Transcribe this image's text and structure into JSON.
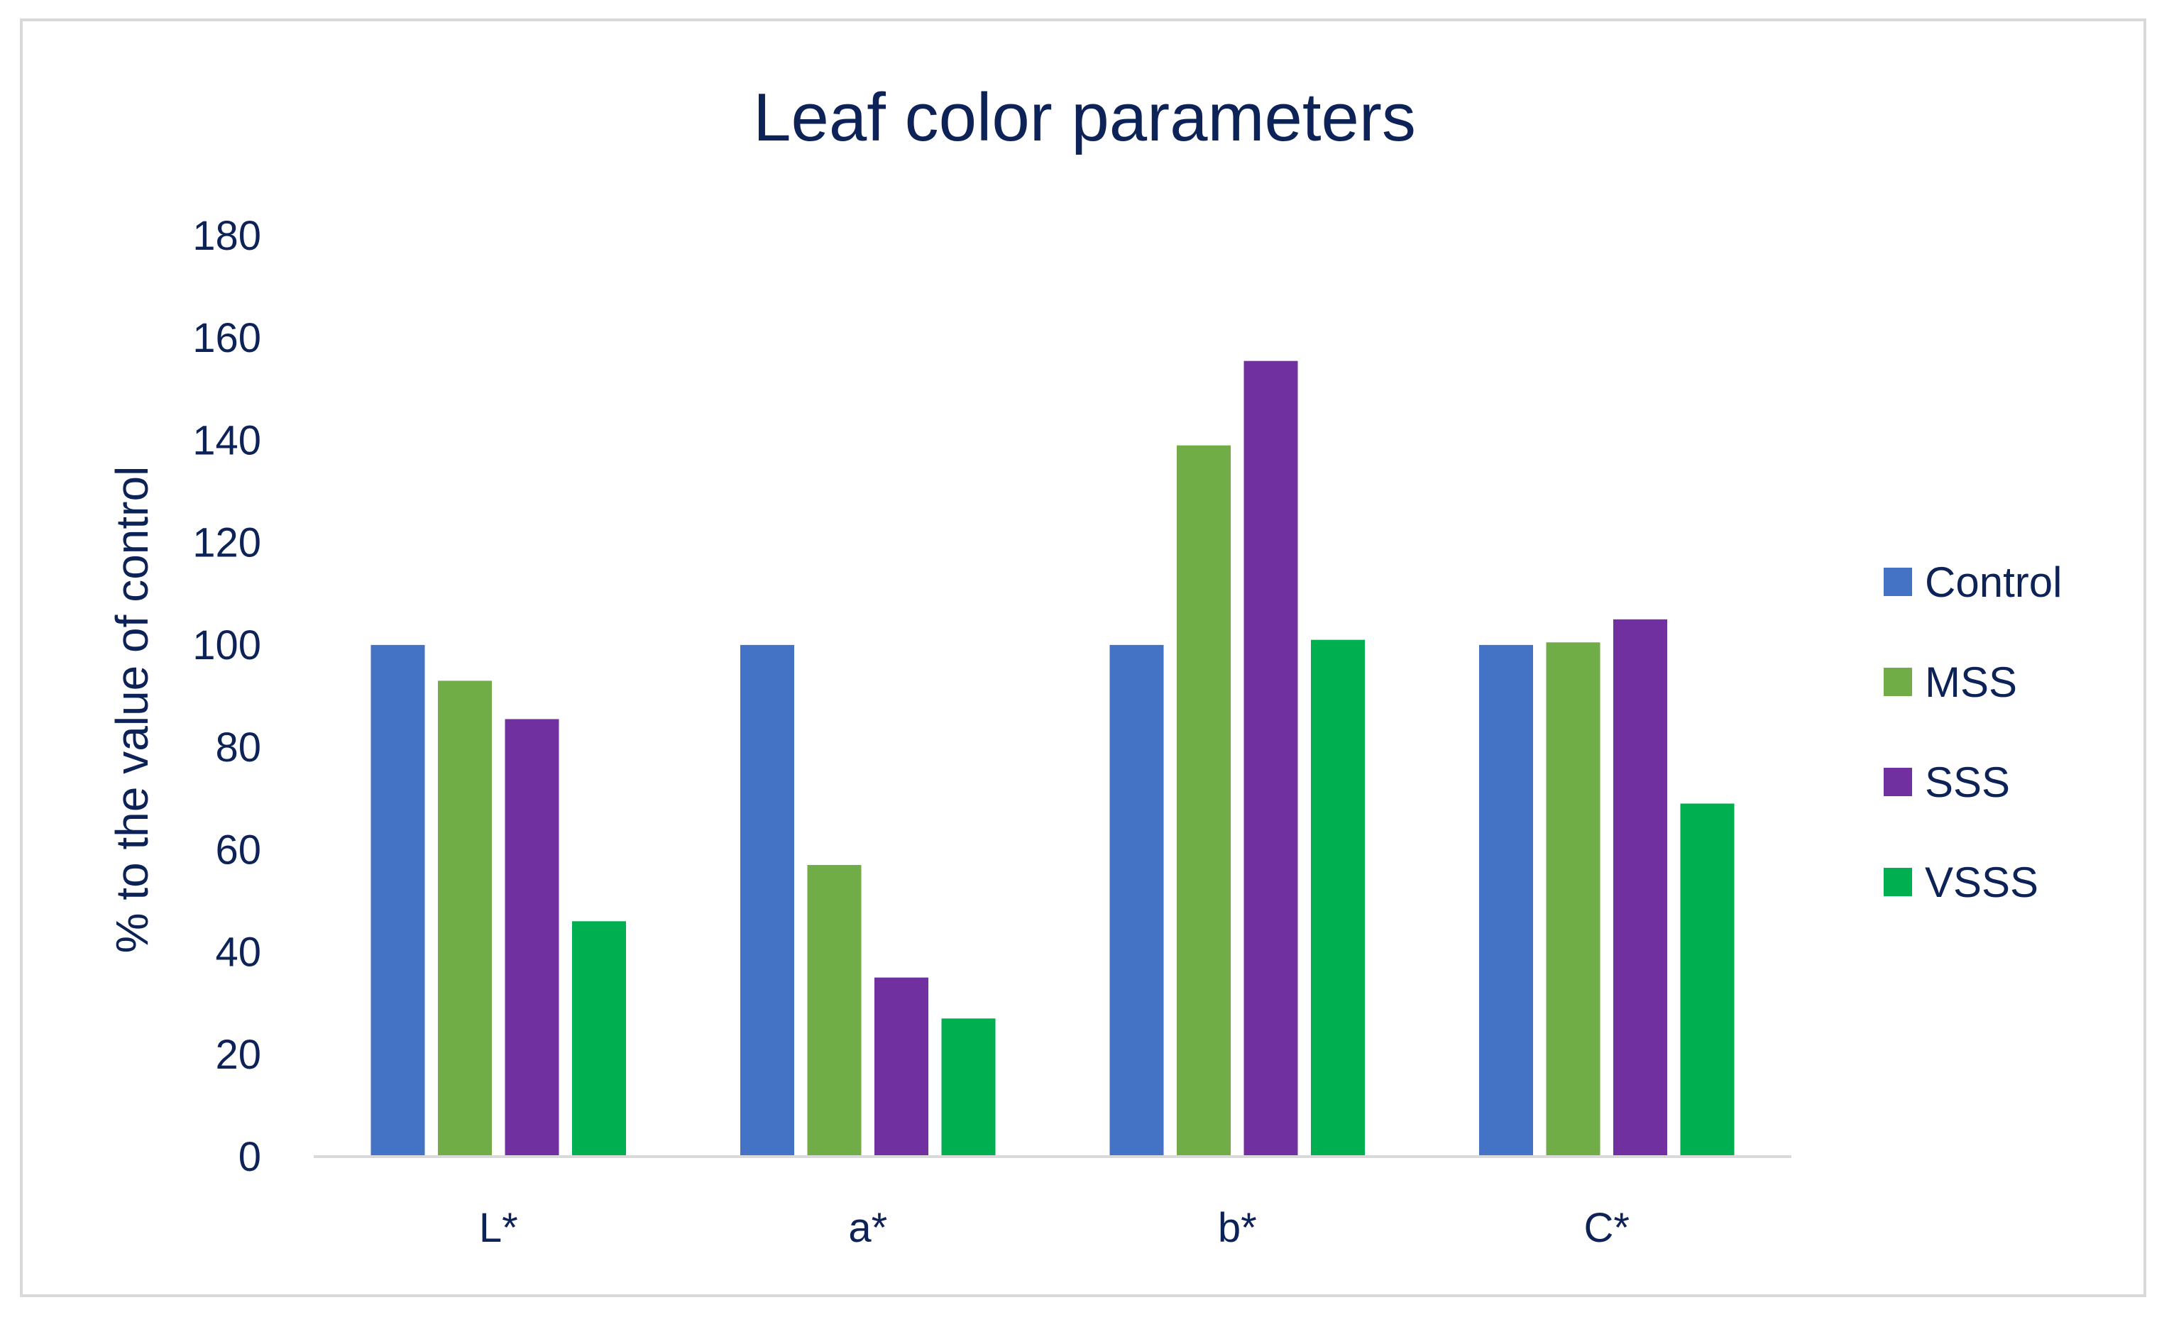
{
  "chart_data": {
    "type": "bar",
    "title": "Leaf color parameters",
    "xlabel": "",
    "ylabel": "% to the value of control",
    "categories": [
      "L*",
      "a*",
      "b*",
      "C*"
    ],
    "series": [
      {
        "name": "Control",
        "color": "#4472c4",
        "values": [
          100,
          100,
          100,
          100
        ]
      },
      {
        "name": "MSS",
        "color": "#70ad47",
        "values": [
          93,
          57,
          139,
          100.5
        ]
      },
      {
        "name": "SSS",
        "color": "#7030a0",
        "values": [
          85.5,
          35,
          155.5,
          105
        ]
      },
      {
        "name": "VSSS",
        "color": "#00b050",
        "values": [
          46,
          27,
          101,
          69
        ]
      }
    ],
    "ylim": [
      0,
      180
    ],
    "yticks": [
      0,
      20,
      40,
      60,
      80,
      100,
      120,
      140,
      160,
      180
    ],
    "grid": false,
    "legend_position": "right"
  }
}
